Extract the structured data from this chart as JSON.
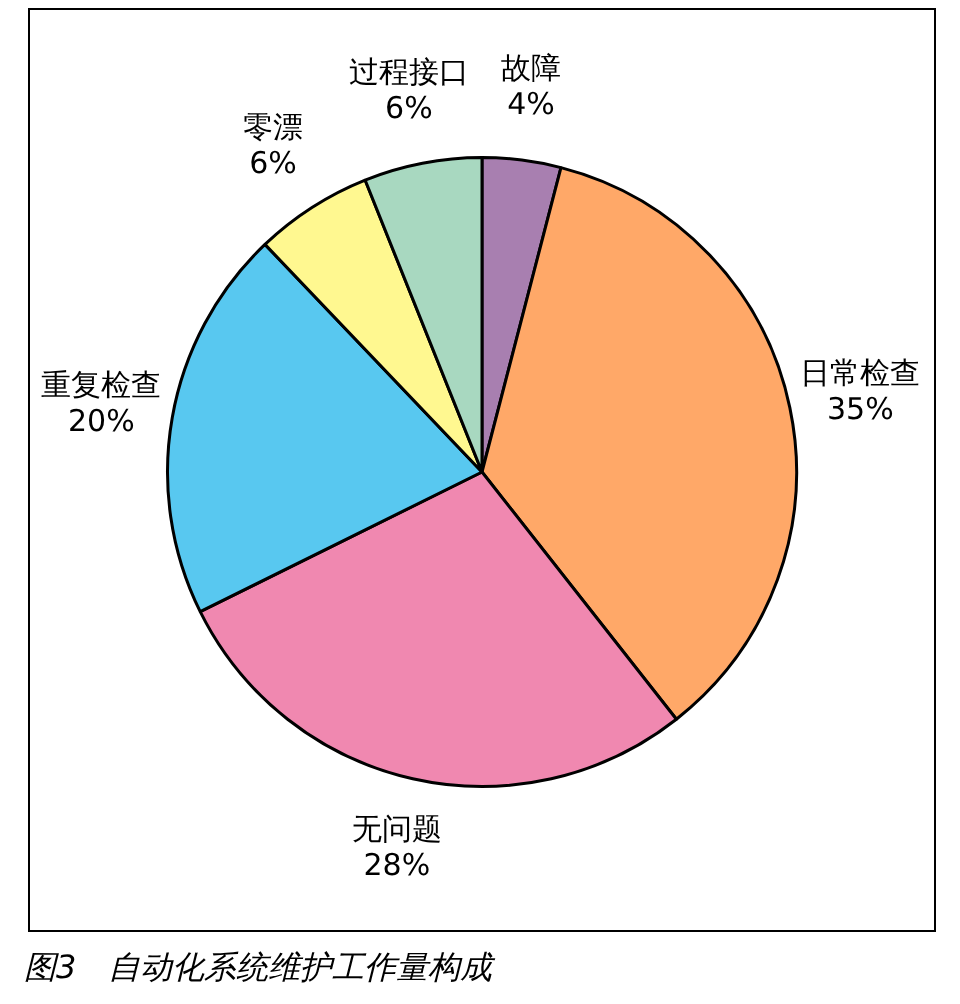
{
  "chart_data": {
    "type": "pie",
    "title": "图3　自动化系统维护工作量构成",
    "categories": [
      "故障",
      "日常检查",
      "无问题",
      "重复检查",
      "零漂",
      "过程接口"
    ],
    "values": [
      4,
      35,
      28,
      20,
      6,
      6
    ],
    "colors": [
      "#a87fb0",
      "#ffa868",
      "#f088b0",
      "#58c8f0",
      "#fff890",
      "#a8d8c0"
    ],
    "value_labels": [
      "4%",
      "35%",
      "28%",
      "20%",
      "6%",
      "6%"
    ],
    "legend": false
  }
}
